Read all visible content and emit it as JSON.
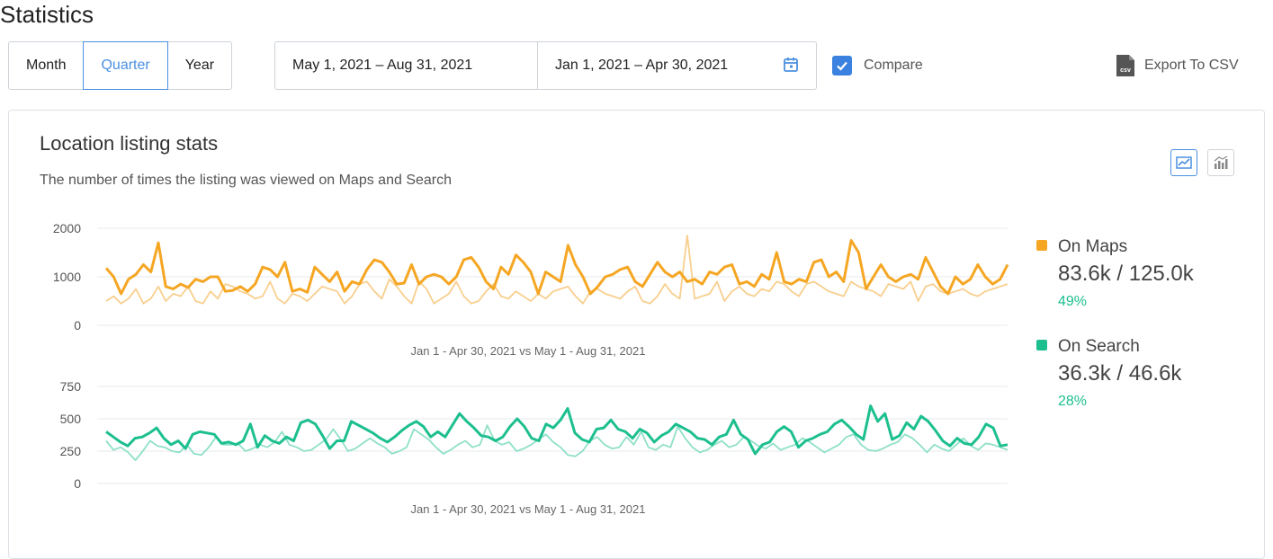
{
  "page": {
    "title": "Statistics"
  },
  "toolbar": {
    "periods": [
      "Month",
      "Quarter",
      "Year"
    ],
    "active_period": "Quarter",
    "range_primary": "May 1, 2021 – Aug 31, 2021",
    "range_compare": "Jan 1, 2021 – Apr 30, 2021",
    "compare_label": "Compare",
    "compare_checked": true,
    "export_label": "Export To CSV",
    "export_icon": "csv-file-icon"
  },
  "card": {
    "title": "Location listing stats",
    "subtitle": "The number of times the listing was viewed on Maps and Search",
    "view_modes": [
      "line-chart-icon",
      "bar-chart-icon"
    ],
    "active_view": "line-chart-icon"
  },
  "colors": {
    "maps": "#f5a623",
    "maps_compare": "#f8cf8e",
    "search": "#1dbf8f",
    "search_compare": "#8fe0c8",
    "accent": "#4a90e2"
  },
  "legend": [
    {
      "name": "On Maps",
      "value": "83.6k / 125.0k",
      "change": "49%",
      "color": "#f5a623"
    },
    {
      "name": "On Search",
      "value": "36.3k / 46.6k",
      "change": "28%",
      "color": "#1dbf8f"
    }
  ],
  "chart_data": [
    {
      "type": "line",
      "title": "",
      "xlabel": "Jan 1 - Apr 30, 2021 vs May 1 - Aug 31, 2021",
      "ylabel": "",
      "yticks": [
        0,
        1000,
        2000
      ],
      "ylim": [
        0,
        2000
      ],
      "grid": true,
      "series": [
        {
          "name": "On Maps",
          "role": "current",
          "values": [
            1180,
            1000,
            650,
            950,
            1050,
            1250,
            1100,
            1700,
            800,
            750,
            850,
            780,
            950,
            900,
            1000,
            1000,
            700,
            720,
            800,
            700,
            850,
            1200,
            1150,
            1000,
            1300,
            700,
            750,
            680,
            1200,
            1050,
            900,
            1100,
            700,
            900,
            850,
            1150,
            1350,
            1300,
            1100,
            850,
            870,
            1250,
            850,
            1000,
            1050,
            1000,
            850,
            1000,
            1350,
            1400,
            1200,
            900,
            750,
            1200,
            1050,
            1450,
            1300,
            1100,
            650,
            1100,
            1000,
            900,
            1650,
            1250,
            1000,
            650,
            800,
            1000,
            1050,
            1150,
            1200,
            900,
            800,
            1050,
            1300,
            1100,
            1000,
            1100,
            900,
            950,
            850,
            1100,
            1050,
            1200,
            1250,
            850,
            900,
            800,
            1050,
            950,
            1500,
            900,
            850,
            950,
            900,
            1300,
            1350,
            1000,
            1100,
            900,
            1750,
            1500,
            750,
            1000,
            1250,
            1000,
            900,
            1000,
            1050,
            950,
            1400,
            1100,
            800,
            650,
            1000,
            850,
            950,
            1250,
            1000,
            850,
            950,
            1250
          ]
        },
        {
          "name": "On Maps",
          "role": "previous",
          "values": [
            500,
            600,
            450,
            550,
            750,
            450,
            550,
            800,
            500,
            650,
            600,
            800,
            500,
            450,
            700,
            550,
            850,
            800,
            700,
            650,
            550,
            600,
            900,
            550,
            450,
            650,
            600,
            500,
            650,
            800,
            750,
            700,
            450,
            600,
            850,
            900,
            700,
            550,
            950,
            800,
            600,
            450,
            900,
            750,
            450,
            550,
            650,
            900,
            600,
            450,
            500,
            700,
            850,
            600,
            550,
            700,
            600,
            500,
            650,
            550,
            700,
            750,
            800,
            600,
            450,
            700,
            750,
            650,
            600,
            550,
            700,
            800,
            500,
            450,
            600,
            850,
            650,
            550,
            1850,
            550,
            600,
            650,
            900,
            500,
            700,
            800,
            650,
            600,
            750,
            700,
            900,
            850,
            700,
            600,
            850,
            900,
            800,
            700,
            650,
            600,
            900,
            800,
            750,
            700,
            600,
            850,
            800,
            750,
            900,
            500,
            800,
            850,
            700,
            650,
            700,
            750,
            650,
            600,
            700,
            750,
            800,
            850
          ]
        }
      ]
    },
    {
      "type": "line",
      "title": "",
      "xlabel": "Jan 1 - Apr 30, 2021 vs May 1 - Aug 31, 2021",
      "ylabel": "",
      "yticks": [
        0,
        250,
        500,
        750
      ],
      "ylim": [
        0,
        750
      ],
      "grid": true,
      "series": [
        {
          "name": "On Search",
          "role": "current",
          "values": [
            400,
            360,
            320,
            290,
            350,
            360,
            390,
            430,
            350,
            300,
            330,
            270,
            380,
            400,
            390,
            380,
            310,
            320,
            300,
            330,
            460,
            280,
            370,
            330,
            310,
            360,
            330,
            470,
            490,
            460,
            370,
            270,
            330,
            330,
            480,
            450,
            420,
            390,
            350,
            320,
            360,
            410,
            450,
            480,
            440,
            360,
            400,
            360,
            450,
            540,
            480,
            430,
            370,
            360,
            330,
            360,
            440,
            500,
            440,
            350,
            330,
            460,
            430,
            490,
            580,
            390,
            340,
            320,
            420,
            430,
            490,
            420,
            400,
            350,
            420,
            390,
            320,
            370,
            400,
            460,
            430,
            400,
            350,
            340,
            300,
            360,
            380,
            490,
            380,
            340,
            230,
            300,
            320,
            400,
            440,
            400,
            280,
            330,
            350,
            380,
            400,
            460,
            490,
            440,
            380,
            340,
            600,
            480,
            540,
            340,
            370,
            470,
            420,
            520,
            480,
            410,
            330,
            290,
            350,
            310,
            300,
            360,
            460,
            430,
            290,
            300
          ]
        },
        {
          "name": "On Search",
          "role": "previous",
          "values": [
            330,
            260,
            280,
            240,
            180,
            250,
            330,
            290,
            280,
            250,
            240,
            300,
            230,
            220,
            280,
            360,
            300,
            300,
            310,
            250,
            270,
            300,
            280,
            320,
            400,
            300,
            280,
            250,
            260,
            300,
            340,
            420,
            340,
            250,
            270,
            310,
            350,
            310,
            280,
            230,
            250,
            280,
            420,
            380,
            340,
            280,
            230,
            260,
            300,
            330,
            280,
            300,
            450,
            330,
            300,
            320,
            250,
            270,
            300,
            340,
            380,
            320,
            280,
            220,
            210,
            250,
            330,
            360,
            300,
            270,
            280,
            360,
            300,
            400,
            280,
            260,
            300,
            280,
            440,
            350,
            280,
            240,
            260,
            300,
            330,
            280,
            300,
            360,
            330,
            290,
            270,
            310,
            260,
            280,
            300,
            350,
            320,
            280,
            240,
            270,
            300,
            360,
            380,
            300,
            260,
            250,
            270,
            300,
            320,
            380,
            350,
            300,
            240,
            300,
            270,
            250,
            300,
            350,
            290,
            260,
            310,
            300,
            280,
            260
          ]
        }
      ]
    }
  ]
}
